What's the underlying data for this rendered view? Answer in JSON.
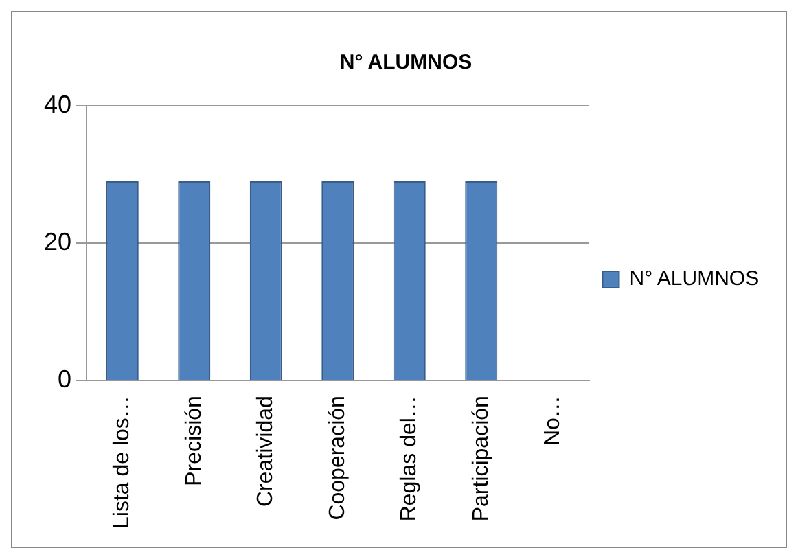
{
  "chart_data": {
    "type": "bar",
    "title": "N° ALUMNOS",
    "categories": [
      "Lista de los…",
      "Precisión",
      "Creatividad",
      "Cooperación",
      "Reglas del…",
      "Participación",
      "No…"
    ],
    "series": [
      {
        "name": "N° ALUMNOS",
        "color": "#4f81bd",
        "values": [
          29,
          29,
          29,
          29,
          29,
          29,
          0
        ]
      }
    ],
    "ylim": [
      0,
      40
    ],
    "yticks": [
      0,
      20,
      40
    ],
    "grid": "y",
    "legend": "right"
  }
}
